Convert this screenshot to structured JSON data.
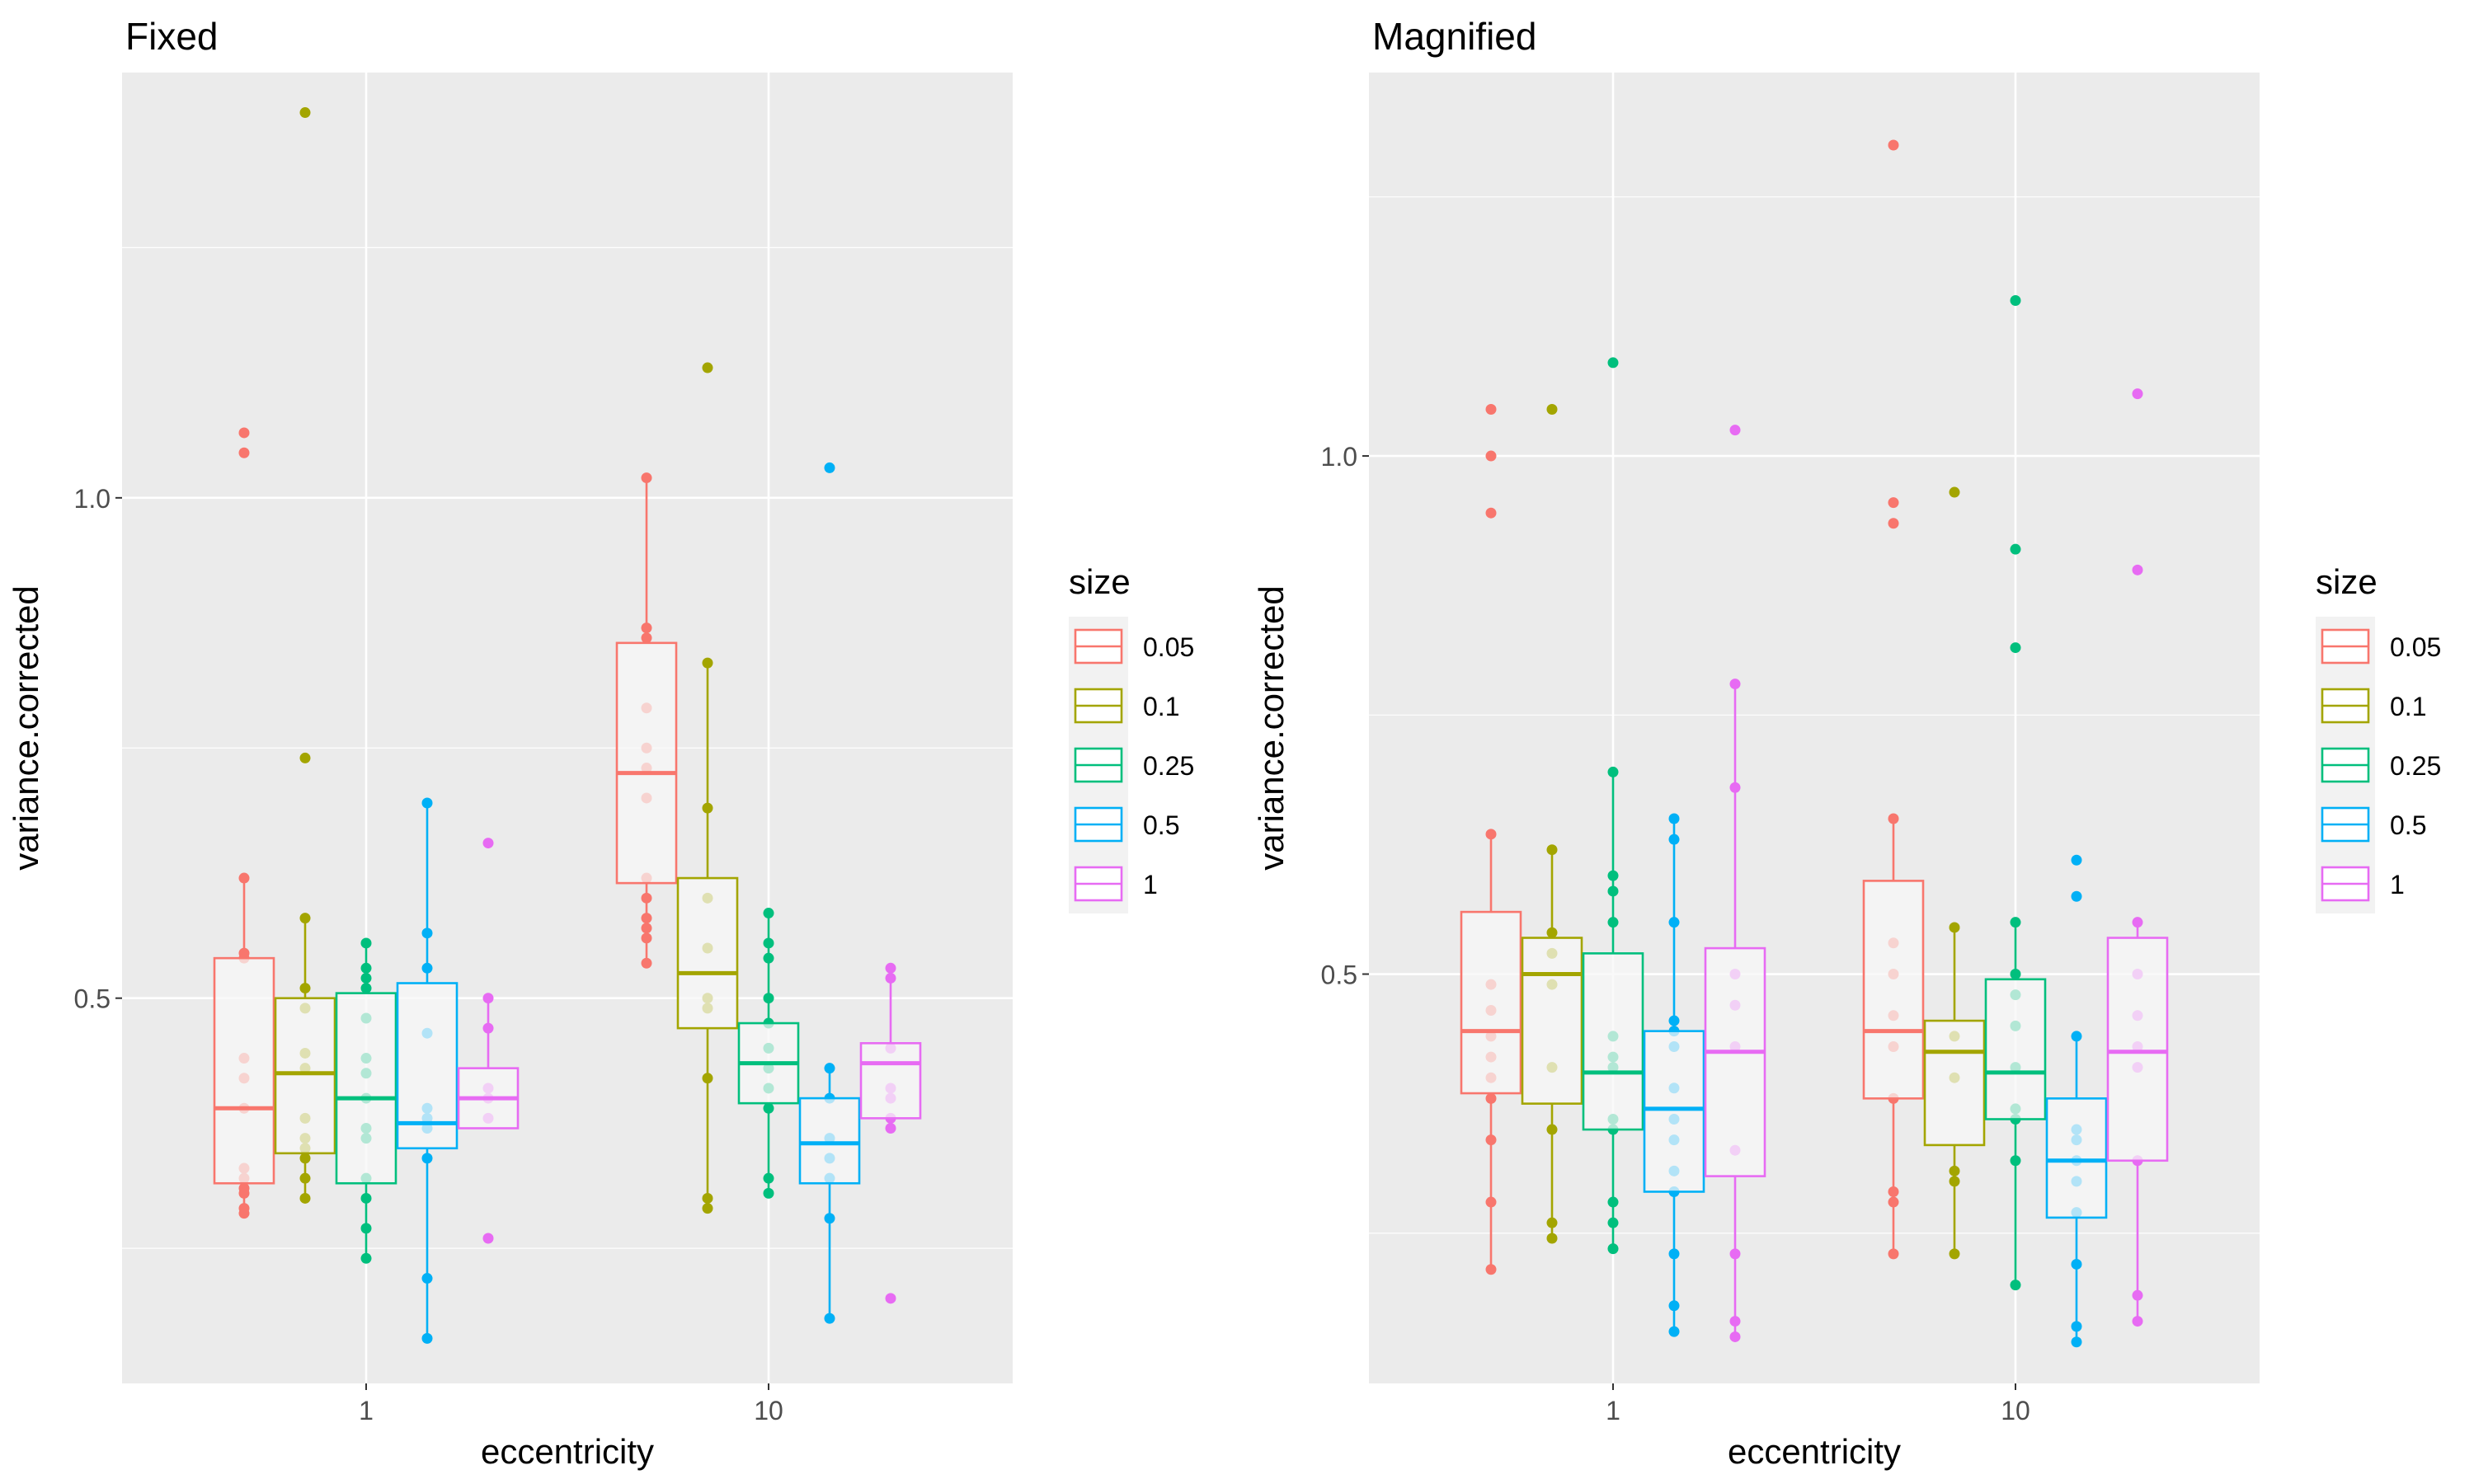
{
  "chart_data": [
    {
      "type": "box",
      "title": "Fixed",
      "xlabel": "eccentricity",
      "ylabel": "variance.corrected",
      "categories": [
        "1",
        "10"
      ],
      "yticks": [
        0.5,
        1.0
      ],
      "ytick_labels": [
        "0.5",
        "1.0"
      ],
      "ylim": [
        0.115,
        1.425
      ],
      "grid": true,
      "legend": {
        "title": "size",
        "position": "right"
      },
      "groups": [
        {
          "category": "1",
          "size": "0.05",
          "q1": 0.315,
          "median": 0.39,
          "q3": 0.54,
          "whisker_low": 0.285,
          "whisker_high": 0.62,
          "points": [
            1.065,
            1.045,
            0.62,
            0.545,
            0.54,
            0.44,
            0.42,
            0.39,
            0.33,
            0.32,
            0.31,
            0.305,
            0.29,
            0.285
          ]
        },
        {
          "category": "1",
          "size": "0.1",
          "q1": 0.345,
          "median": 0.425,
          "q3": 0.5,
          "whisker_low": 0.3,
          "whisker_high": 0.58,
          "points": [
            1.385,
            0.74,
            0.58,
            0.51,
            0.49,
            0.445,
            0.43,
            0.38,
            0.36,
            0.35,
            0.34,
            0.32,
            0.3
          ]
        },
        {
          "category": "1",
          "size": "0.25",
          "q1": 0.315,
          "median": 0.4,
          "q3": 0.505,
          "whisker_low": 0.24,
          "whisker_high": 0.555,
          "points": [
            0.555,
            0.53,
            0.52,
            0.51,
            0.48,
            0.44,
            0.425,
            0.4,
            0.37,
            0.36,
            0.32,
            0.3,
            0.27,
            0.24
          ]
        },
        {
          "category": "1",
          "size": "0.5",
          "q1": 0.35,
          "median": 0.375,
          "q3": 0.515,
          "whisker_low": 0.16,
          "whisker_high": 0.695,
          "points": [
            0.695,
            0.565,
            0.53,
            0.465,
            0.39,
            0.38,
            0.37,
            0.34,
            0.22,
            0.16
          ]
        },
        {
          "category": "1",
          "size": "1",
          "q1": 0.37,
          "median": 0.4,
          "q3": 0.43,
          "whisker_low": 0.37,
          "whisker_high": 0.5,
          "points": [
            0.655,
            0.5,
            0.47,
            0.41,
            0.4,
            0.38,
            0.26
          ]
        },
        {
          "category": "10",
          "size": "0.05",
          "q1": 0.615,
          "median": 0.725,
          "q3": 0.855,
          "whisker_low": 0.535,
          "whisker_high": 1.02,
          "points": [
            1.02,
            0.87,
            0.86,
            0.79,
            0.75,
            0.73,
            0.7,
            0.62,
            0.6,
            0.58,
            0.57,
            0.56,
            0.535
          ]
        },
        {
          "category": "10",
          "size": "0.1",
          "q1": 0.47,
          "median": 0.525,
          "q3": 0.62,
          "whisker_low": 0.285,
          "whisker_high": 0.835,
          "points": [
            1.13,
            0.835,
            0.69,
            0.6,
            0.55,
            0.5,
            0.49,
            0.42,
            0.3,
            0.29
          ]
        },
        {
          "category": "10",
          "size": "0.25",
          "q1": 0.395,
          "median": 0.435,
          "q3": 0.475,
          "whisker_low": 0.305,
          "whisker_high": 0.585,
          "points": [
            0.585,
            0.555,
            0.54,
            0.5,
            0.475,
            0.45,
            0.43,
            0.41,
            0.39,
            0.32,
            0.305
          ]
        },
        {
          "category": "10",
          "size": "0.5",
          "q1": 0.315,
          "median": 0.355,
          "q3": 0.4,
          "whisker_low": 0.18,
          "whisker_high": 0.43,
          "points": [
            1.03,
            0.43,
            0.4,
            0.36,
            0.34,
            0.32,
            0.28,
            0.18
          ]
        },
        {
          "category": "10",
          "size": "1",
          "q1": 0.38,
          "median": 0.435,
          "q3": 0.455,
          "whisker_low": 0.37,
          "whisker_high": 0.53,
          "points": [
            0.53,
            0.52,
            0.45,
            0.41,
            0.4,
            0.38,
            0.37,
            0.2
          ]
        }
      ]
    },
    {
      "type": "box",
      "title": "Magnified",
      "xlabel": "eccentricity",
      "ylabel": "variance.corrected",
      "categories": [
        "1",
        "10"
      ],
      "yticks": [
        0.5,
        1.0
      ],
      "ytick_labels": [
        "0.5",
        "1.0"
      ],
      "ylim": [
        0.105,
        1.37
      ],
      "grid": true,
      "legend": {
        "title": "size",
        "position": "right"
      },
      "groups": [
        {
          "category": "1",
          "size": "0.05",
          "q1": 0.385,
          "median": 0.445,
          "q3": 0.56,
          "whisker_low": 0.215,
          "whisker_high": 0.635,
          "points": [
            1.045,
            1.0,
            0.945,
            0.635,
            0.49,
            0.465,
            0.44,
            0.42,
            0.4,
            0.38,
            0.34,
            0.28,
            0.215
          ]
        },
        {
          "category": "1",
          "size": "0.1",
          "q1": 0.375,
          "median": 0.5,
          "q3": 0.535,
          "whisker_low": 0.245,
          "whisker_high": 0.62,
          "points": [
            1.045,
            0.62,
            0.54,
            0.52,
            0.49,
            0.41,
            0.35,
            0.26,
            0.245
          ]
        },
        {
          "category": "1",
          "size": "0.25",
          "q1": 0.35,
          "median": 0.405,
          "q3": 0.52,
          "whisker_low": 0.235,
          "whisker_high": 0.695,
          "points": [
            1.09,
            0.695,
            0.595,
            0.58,
            0.55,
            0.44,
            0.42,
            0.41,
            0.36,
            0.35,
            0.28,
            0.26,
            0.235
          ]
        },
        {
          "category": "1",
          "size": "0.5",
          "q1": 0.29,
          "median": 0.37,
          "q3": 0.445,
          "whisker_low": 0.155,
          "whisker_high": 0.65,
          "points": [
            0.65,
            0.63,
            0.55,
            0.455,
            0.445,
            0.43,
            0.39,
            0.36,
            0.34,
            0.31,
            0.29,
            0.23,
            0.18,
            0.155
          ]
        },
        {
          "category": "1",
          "size": "1",
          "q1": 0.305,
          "median": 0.425,
          "q3": 0.525,
          "whisker_low": 0.15,
          "whisker_high": 0.78,
          "points": [
            1.025,
            0.78,
            0.68,
            0.5,
            0.47,
            0.43,
            0.33,
            0.23,
            0.165,
            0.15
          ]
        },
        {
          "category": "10",
          "size": "0.05",
          "q1": 0.38,
          "median": 0.445,
          "q3": 0.59,
          "whisker_low": 0.23,
          "whisker_high": 0.65,
          "points": [
            1.3,
            0.955,
            0.935,
            0.65,
            0.53,
            0.5,
            0.46,
            0.43,
            0.38,
            0.29,
            0.28,
            0.23
          ]
        },
        {
          "category": "10",
          "size": "0.1",
          "q1": 0.335,
          "median": 0.425,
          "q3": 0.455,
          "whisker_low": 0.23,
          "whisker_high": 0.545,
          "points": [
            0.965,
            0.545,
            0.44,
            0.4,
            0.31,
            0.3,
            0.23
          ]
        },
        {
          "category": "10",
          "size": "0.25",
          "q1": 0.36,
          "median": 0.405,
          "q3": 0.495,
          "whisker_low": 0.2,
          "whisker_high": 0.55,
          "points": [
            1.15,
            0.91,
            0.815,
            0.55,
            0.5,
            0.48,
            0.45,
            0.41,
            0.37,
            0.36,
            0.32,
            0.2
          ]
        },
        {
          "category": "10",
          "size": "0.5",
          "q1": 0.265,
          "median": 0.32,
          "q3": 0.38,
          "whisker_low": 0.145,
          "whisker_high": 0.44,
          "points": [
            0.61,
            0.575,
            0.44,
            0.35,
            0.34,
            0.32,
            0.3,
            0.27,
            0.22,
            0.16,
            0.145
          ]
        },
        {
          "category": "10",
          "size": "1",
          "q1": 0.32,
          "median": 0.425,
          "q3": 0.535,
          "whisker_low": 0.165,
          "whisker_high": 0.55,
          "points": [
            1.06,
            0.89,
            0.55,
            0.5,
            0.46,
            0.43,
            0.41,
            0.32,
            0.19,
            0.165
          ]
        }
      ]
    }
  ],
  "legend_items": [
    {
      "label": "0.05",
      "color": "#F8766D"
    },
    {
      "label": "0.1",
      "color": "#A3A500"
    },
    {
      "label": "0.25",
      "color": "#00BF7D"
    },
    {
      "label": "0.5",
      "color": "#00B0F6"
    },
    {
      "label": "1",
      "color": "#E76BF3"
    }
  ],
  "colors": {
    "panel_bg": "#EBEBEB",
    "grid": "#FFFFFF",
    "box_fill": "#F5F5F5"
  }
}
